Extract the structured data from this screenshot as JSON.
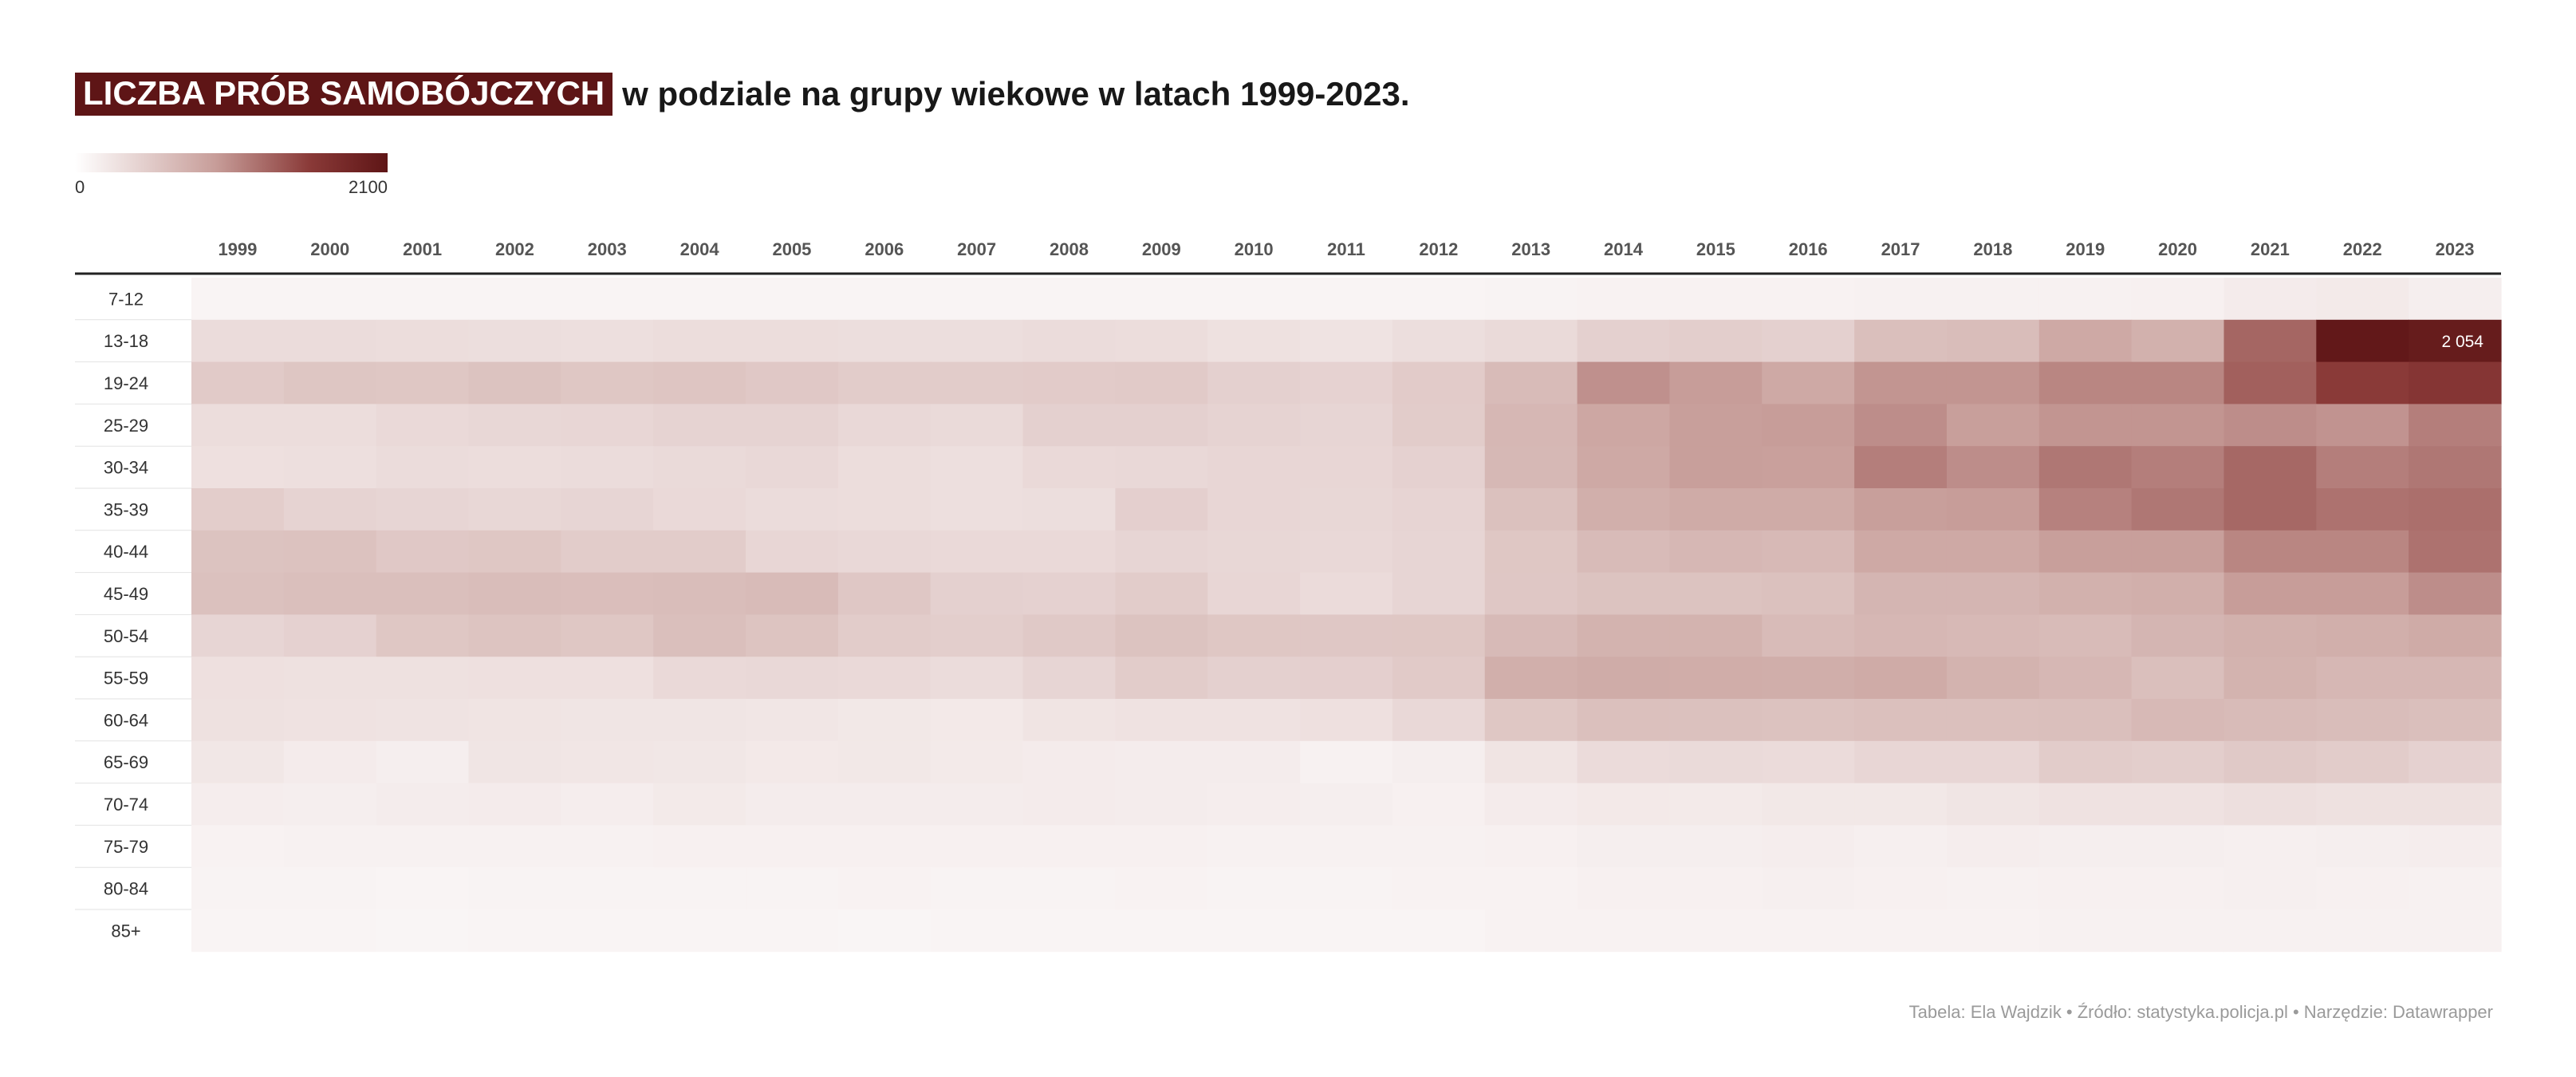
{
  "title": {
    "highlight": "LICZBA PRÓB SAMOBÓJCZYCH",
    "rest": "w podziale na grupy wiekowe w latach 1999-2023."
  },
  "legend": {
    "min_label": "0",
    "max_label": "2100",
    "low_color": "#ffffff",
    "high_color": "#5e1516"
  },
  "footer": "Tabela: Ela Wajdzik • Źródło: statystyka.policja.pl • Narzędzie: Datawrapper",
  "chart_data": {
    "type": "heatmap",
    "color_range": [
      0,
      2100
    ],
    "x": [
      "1999",
      "2000",
      "2001",
      "2002",
      "2003",
      "2004",
      "2005",
      "2006",
      "2007",
      "2008",
      "2009",
      "2010",
      "2011",
      "2012",
      "2013",
      "2014",
      "2015",
      "2016",
      "2017",
      "2018",
      "2019",
      "2020",
      "2021",
      "2022",
      "2023"
    ],
    "y": [
      "7-12",
      "13-18",
      "19-24",
      "25-29",
      "30-34",
      "35-39",
      "40-44",
      "45-49",
      "50-54",
      "55-59",
      "60-64",
      "65-69",
      "70-74",
      "75-79",
      "80-84",
      "85+"
    ],
    "values": [
      [
        20,
        20,
        20,
        20,
        20,
        20,
        20,
        20,
        20,
        20,
        20,
        20,
        20,
        20,
        30,
        40,
        40,
        40,
        50,
        50,
        50,
        60,
        110,
        120,
        80
      ],
      [
        260,
        260,
        250,
        240,
        230,
        250,
        250,
        240,
        240,
        260,
        250,
        210,
        190,
        240,
        280,
        380,
        400,
        380,
        560,
        580,
        780,
        700,
        1260,
        2054,
        2000
      ],
      [
        440,
        490,
        480,
        520,
        480,
        500,
        460,
        420,
        420,
        430,
        440,
        380,
        360,
        430,
        600,
        980,
        900,
        780,
        950,
        950,
        1050,
        1050,
        1300,
        1550,
        1620
      ],
      [
        250,
        250,
        290,
        310,
        320,
        350,
        350,
        300,
        280,
        380,
        380,
        350,
        330,
        420,
        640,
        800,
        880,
        900,
        1000,
        880,
        950,
        950,
        1000,
        960,
        1100
      ],
      [
        220,
        230,
        260,
        250,
        260,
        280,
        300,
        250,
        230,
        290,
        300,
        320,
        320,
        370,
        630,
        780,
        880,
        870,
        1100,
        1000,
        1150,
        1100,
        1250,
        1100,
        1150
      ],
      [
        410,
        350,
        330,
        310,
        330,
        290,
        260,
        250,
        230,
        240,
        390,
        320,
        310,
        340,
        540,
        720,
        760,
        760,
        880,
        900,
        1080,
        1150,
        1250,
        1180,
        1200
      ],
      [
        520,
        530,
        460,
        480,
        420,
        420,
        320,
        300,
        290,
        290,
        330,
        310,
        300,
        330,
        480,
        600,
        640,
        620,
        780,
        780,
        880,
        880,
        1050,
        1050,
        1180
      ],
      [
        540,
        560,
        560,
        580,
        570,
        580,
        600,
        470,
        380,
        370,
        420,
        320,
        270,
        330,
        470,
        520,
        520,
        540,
        660,
        660,
        700,
        720,
        900,
        900,
        1000
      ],
      [
        330,
        370,
        480,
        510,
        480,
        560,
        510,
        420,
        400,
        450,
        520,
        480,
        470,
        480,
        610,
        680,
        680,
        600,
        640,
        620,
        600,
        660,
        700,
        720,
        760
      ],
      [
        220,
        210,
        210,
        220,
        220,
        290,
        300,
        290,
        260,
        330,
        420,
        380,
        390,
        440,
        720,
        750,
        740,
        730,
        760,
        680,
        640,
        560,
        680,
        640,
        640
      ],
      [
        210,
        200,
        190,
        180,
        170,
        170,
        160,
        140,
        130,
        180,
        200,
        200,
        220,
        300,
        480,
        550,
        540,
        530,
        550,
        550,
        560,
        620,
        600,
        580,
        560
      ],
      [
        150,
        110,
        80,
        170,
        160,
        150,
        130,
        140,
        120,
        110,
        100,
        100,
        50,
        80,
        180,
        270,
        280,
        270,
        320,
        320,
        420,
        400,
        450,
        420,
        370
      ],
      [
        90,
        80,
        100,
        110,
        90,
        120,
        100,
        100,
        100,
        110,
        100,
        90,
        80,
        60,
        110,
        130,
        120,
        140,
        140,
        170,
        200,
        200,
        230,
        210,
        210
      ],
      [
        40,
        50,
        50,
        50,
        50,
        60,
        60,
        60,
        60,
        60,
        60,
        50,
        50,
        50,
        60,
        80,
        80,
        90,
        70,
        90,
        80,
        80,
        70,
        80,
        90
      ],
      [
        30,
        30,
        20,
        30,
        30,
        30,
        30,
        40,
        30,
        30,
        40,
        30,
        30,
        40,
        40,
        60,
        60,
        70,
        60,
        50,
        60,
        60,
        70,
        60,
        50
      ],
      [
        20,
        20,
        10,
        20,
        20,
        20,
        20,
        10,
        20,
        20,
        20,
        20,
        20,
        20,
        40,
        40,
        40,
        40,
        40,
        40,
        50,
        50,
        50,
        50,
        50
      ]
    ],
    "annotations": [
      {
        "row": "13-18",
        "col": "2022",
        "label": "2 054"
      }
    ]
  }
}
